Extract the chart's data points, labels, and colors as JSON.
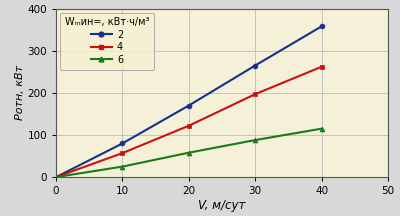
{
  "x_values": [
    0,
    10,
    20,
    30,
    40
  ],
  "series": [
    {
      "label": "2",
      "color": "#1a2f8c",
      "marker": "o",
      "y_values": [
        0,
        80,
        170,
        265,
        358
      ]
    },
    {
      "label": "4",
      "color": "#cc1111",
      "marker": "s",
      "y_values": [
        0,
        57,
        122,
        197,
        262
      ]
    },
    {
      "label": "6",
      "color": "#1a7a1a",
      "marker": "^",
      "y_values": [
        0,
        25,
        58,
        88,
        115
      ]
    }
  ],
  "xlabel": "V, м/сут",
  "ylabel": "Pотн, кВт",
  "xlim": [
    0,
    50
  ],
  "ylim": [
    0,
    400
  ],
  "xticks": [
    0,
    10,
    20,
    30,
    40,
    50
  ],
  "yticks": [
    0,
    100,
    200,
    300,
    400
  ],
  "legend_title": "Wₘин=, кВт·ч/м³",
  "plot_bg": "#f5f0d8",
  "figure_bg": "#d8d8d8",
  "grid_color": "#bbbbbb",
  "border_color": "#555555"
}
